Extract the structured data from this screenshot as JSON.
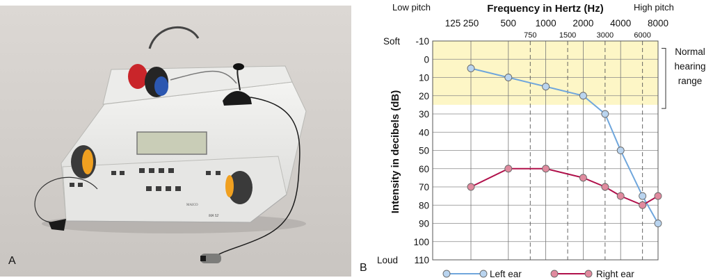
{
  "panels": {
    "a_label": "A",
    "b_label": "B"
  },
  "device": {
    "brand": "MAICO",
    "model": "MA 52"
  },
  "chart_data": {
    "type": "line",
    "title": "Frequency in Hertz (Hz)",
    "xlabel": "Frequency in Hertz (Hz)",
    "ylabel": "Intensity in decibels (dB)",
    "x_scale": "log",
    "x_major_ticks": [
      125,
      250,
      500,
      1000,
      2000,
      4000,
      8000
    ],
    "x_minor_ticks": [
      750,
      1500,
      3000,
      6000
    ],
    "x_edge_labels": {
      "low": "Low pitch",
      "high": "High pitch"
    },
    "ylim": [
      -10,
      110
    ],
    "y_inverted": true,
    "y_ticks": [
      -10,
      0,
      10,
      20,
      30,
      40,
      50,
      60,
      70,
      80,
      90,
      100,
      110
    ],
    "y_edge_labels": {
      "top": "Soft",
      "bottom": "Loud"
    },
    "normal_range": {
      "from": -10,
      "to": 25,
      "label": "Normal hearing range",
      "label_lines": [
        "Normal",
        "hearing",
        "range"
      ],
      "color": "#fdf6c6"
    },
    "grid": true,
    "legend": "bottom",
    "series": [
      {
        "name": "Left ear",
        "color": "#6fa6dc",
        "fill": "#b9d4ef",
        "x": [
          250,
          500,
          1000,
          2000,
          3000,
          4000,
          6000,
          8000
        ],
        "y": [
          5,
          10,
          15,
          20,
          30,
          50,
          75,
          90
        ]
      },
      {
        "name": "Right ear",
        "color": "#b0104a",
        "fill": "#e08a9e",
        "x": [
          250,
          500,
          1000,
          2000,
          3000,
          4000,
          6000,
          8000
        ],
        "y": [
          70,
          60,
          60,
          65,
          70,
          75,
          80,
          75
        ]
      }
    ]
  }
}
